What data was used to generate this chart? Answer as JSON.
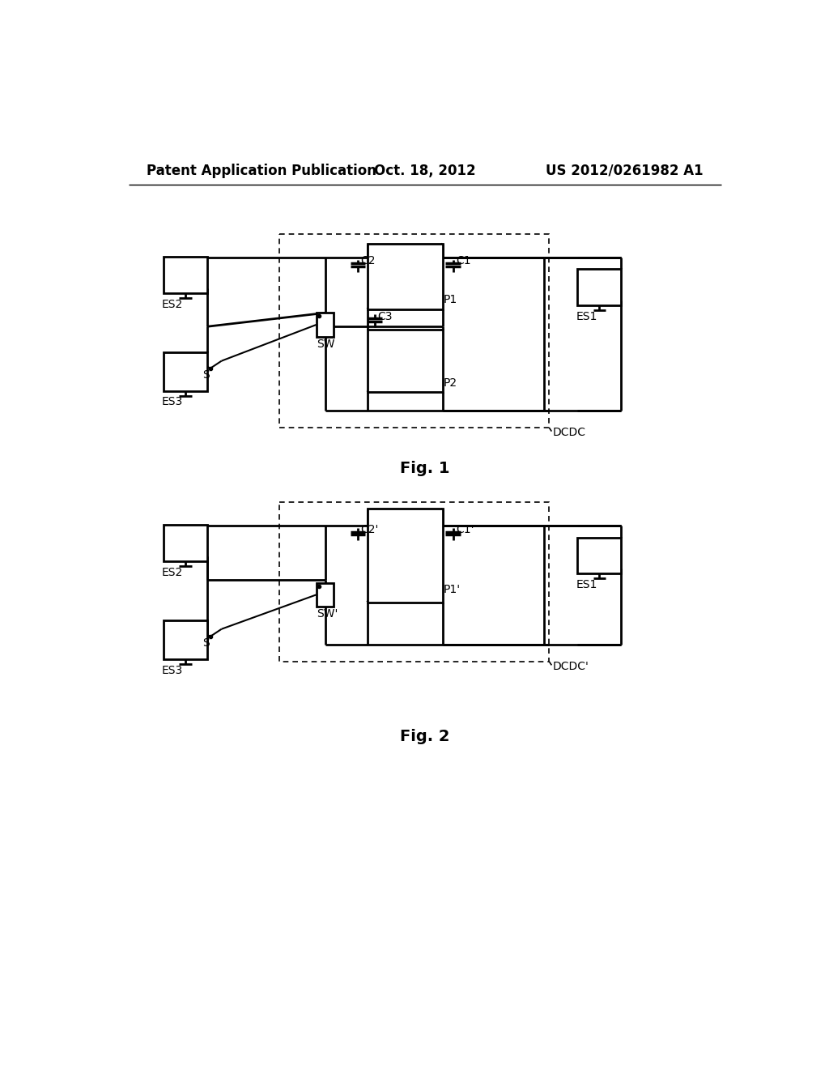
{
  "bg_color": "#ffffff",
  "header_left": "Patent Application Publication",
  "header_center": "Oct. 18, 2012",
  "header_right": "US 2012/0261982 A1",
  "fig1_label": "Fig. 1",
  "fig2_label": "Fig. 2"
}
